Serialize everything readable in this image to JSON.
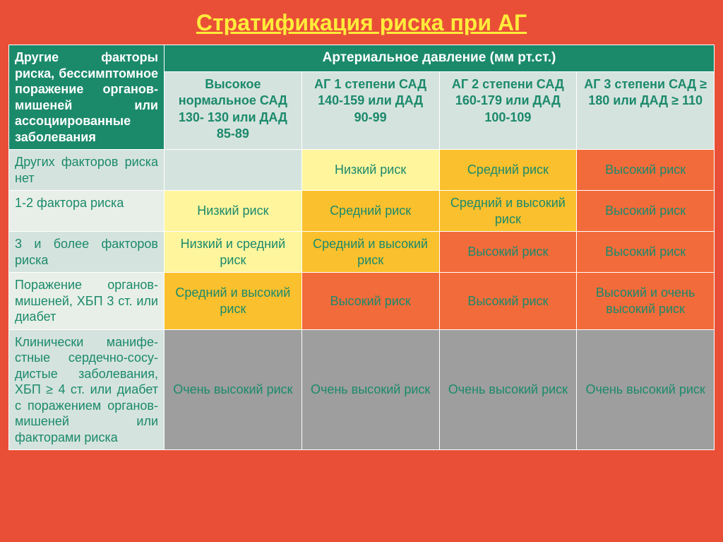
{
  "colors": {
    "slide_bg": "#e94f37",
    "title_color": "#ffeb3b",
    "header_green": "#1b8a6b",
    "subhead_bg": "#d5e3de",
    "subhead_text": "#1b8a6b",
    "rowlabel_bg_a": "#d5e3de",
    "rowlabel_bg_b": "#e8efe8",
    "rowlabel_text": "#1b8a6b",
    "cell_text": "#1b8a6b",
    "risk_none": "#d5e3de",
    "risk_low_yellow": "#fff59d",
    "risk_med_gold": "#fbc02d",
    "risk_high_orange": "#f26b3a",
    "risk_vhigh_gray": "#9e9e9e"
  },
  "title": "Стратификация риска при АГ",
  "header_left": "Другие факторы риска, бессимптомное поражение органов-мишеней или ассоциированные заболевания",
  "header_top": "Артериальное давление (мм рт.ст.)",
  "sub_headers": [
    "Высокое нормальное САД 130- 130 или ДАД 85-89",
    "АГ 1 степени САД 140-159 или ДАД 90-99",
    "АГ 2 степени САД 160-179 или ДАД 100-109",
    "АГ 3 степени САД ≥ 180 или ДАД ≥ 110"
  ],
  "rows": [
    {
      "label": "Других факторов риска нет",
      "label_bg": "#d5e3de",
      "cells": [
        {
          "text": "",
          "bg": "#d5e3de"
        },
        {
          "text": "Низкий риск",
          "bg": "#fff59d"
        },
        {
          "text": "Средний риск",
          "bg": "#fbc02d"
        },
        {
          "text": "Высокий риск",
          "bg": "#f26b3a"
        }
      ]
    },
    {
      "label": "1-2 фактора риска",
      "label_bg": "#e8efe8",
      "cells": [
        {
          "text": "Низкий риск",
          "bg": "#fff59d"
        },
        {
          "text": "Средний риск",
          "bg": "#fbc02d"
        },
        {
          "text": "Средний и высокий риск",
          "bg": "#fbc02d"
        },
        {
          "text": "Высокий риск",
          "bg": "#f26b3a"
        }
      ]
    },
    {
      "label": "3 и более факторов риска",
      "label_bg": "#d5e3de",
      "cells": [
        {
          "text": "Низкий и средний риск",
          "bg": "#fff59d"
        },
        {
          "text": "Средний и высокий риск",
          "bg": "#fbc02d"
        },
        {
          "text": "Высокий риск",
          "bg": "#f26b3a"
        },
        {
          "text": "Высокий риск",
          "bg": "#f26b3a"
        }
      ]
    },
    {
      "label": "Поражение органов-мишеней, ХБП 3 ст. или диабет",
      "label_bg": "#e8efe8",
      "cells": [
        {
          "text": "Средний и высокий риск",
          "bg": "#fbc02d"
        },
        {
          "text": "Высокий риск",
          "bg": "#f26b3a"
        },
        {
          "text": "Высокий риск",
          "bg": "#f26b3a"
        },
        {
          "text": "Высокий и очень высокий риск",
          "bg": "#f26b3a"
        }
      ]
    },
    {
      "label": "Клинически манифе-стные сердечно-сосу-дистые заболевания, ХБП ≥ 4 ст. или диабет с поражением органов-мишеней или факторами риска",
      "label_bg": "#d5e3de",
      "cells": [
        {
          "text": "Очень высокий риск",
          "bg": "#9e9e9e"
        },
        {
          "text": "Очень высокий риск",
          "bg": "#9e9e9e"
        },
        {
          "text": "Очень высокий риск",
          "bg": "#9e9e9e"
        },
        {
          "text": "Очень высокий риск",
          "bg": "#9e9e9e"
        }
      ]
    }
  ]
}
